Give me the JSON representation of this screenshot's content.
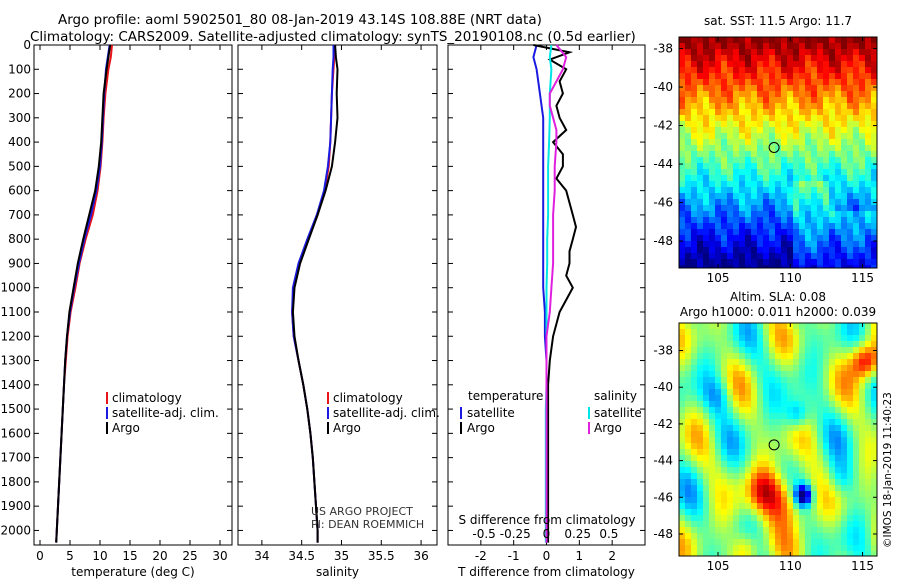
{
  "title": {
    "line1": "Argo profile: aoml 5902501_80 08-Jan-2019 43.14S 108.88E (NRT data)",
    "line2": "Climatology: CARS2009. Satellite-adjusted climatology: synTS_20190108.nc (0.5d earlier)"
  },
  "credit": "©IMOS 18-Jan-2019 11:40:23",
  "project_note": [
    "US ARGO PROJECT",
    "PI: DEAN ROEMMICH"
  ],
  "colors": {
    "climatology": "#e8141a",
    "satellite": "#1a1ae0",
    "argo": "#000000",
    "sat_salinity": "#00e5e5",
    "argo_salinity": "#e020e0"
  },
  "y_ticks": [
    0,
    100,
    200,
    300,
    400,
    500,
    600,
    700,
    800,
    900,
    1000,
    1100,
    1200,
    1300,
    1400,
    1500,
    1600,
    1700,
    1800,
    1900,
    2000
  ],
  "chart_data": [
    {
      "type": "line",
      "xlabel": "temperature (deg C)",
      "xlim": [
        -1,
        32
      ],
      "ylim": [
        2060,
        0
      ],
      "x_ticks": [
        "0",
        "5",
        "10",
        "15",
        "20",
        "25",
        "30"
      ],
      "x_tick_values": [
        0,
        5,
        10,
        15,
        20,
        25,
        30
      ],
      "legend": [
        "climatology",
        "satellite-adj. clim.",
        "Argo"
      ],
      "series": [
        {
          "name": "climatology",
          "color": "red",
          "depth": [
            0,
            50,
            100,
            200,
            300,
            400,
            500,
            600,
            700,
            800,
            900,
            1000,
            1100,
            1200,
            1300,
            1400,
            1500,
            1600,
            1700,
            1800,
            1900,
            2000,
            2050
          ],
          "values": [
            12.0,
            11.8,
            11.4,
            10.9,
            10.6,
            10.4,
            10.1,
            9.6,
            8.8,
            7.6,
            6.6,
            5.9,
            5.1,
            4.6,
            4.3,
            4.0,
            3.8,
            3.6,
            3.4,
            3.2,
            3.0,
            2.8,
            2.7
          ]
        },
        {
          "name": "satellite-adj. clim.",
          "color": "blue",
          "depth": [
            0,
            50,
            100,
            200,
            300,
            400,
            500,
            600,
            700,
            800,
            900,
            1000,
            1100,
            1200,
            1300,
            1400,
            1500,
            1600,
            1700,
            1800,
            1900,
            2000,
            2050
          ],
          "values": [
            11.6,
            11.3,
            11.0,
            10.7,
            10.5,
            10.3,
            10.0,
            9.4,
            8.5,
            7.4,
            6.5,
            5.7,
            5.0,
            4.5,
            4.2,
            4.0,
            3.8,
            3.6,
            3.4,
            3.2,
            3.0,
            2.8,
            2.7
          ]
        },
        {
          "name": "Argo",
          "color": "black",
          "depth": [
            0,
            50,
            100,
            200,
            300,
            400,
            500,
            600,
            700,
            800,
            900,
            1000,
            1100,
            1200,
            1300,
            1400,
            1500,
            1600,
            1700,
            1800,
            1900,
            2000,
            2050
          ],
          "values": [
            11.7,
            11.4,
            11.1,
            10.6,
            10.4,
            10.2,
            9.8,
            9.2,
            8.2,
            7.2,
            6.3,
            5.6,
            4.9,
            4.5,
            4.2,
            4.0,
            3.8,
            3.6,
            3.4,
            3.2,
            3.0,
            2.8,
            2.7
          ]
        }
      ]
    },
    {
      "type": "line",
      "xlabel": "salinity",
      "xlim": [
        33.7,
        36.2
      ],
      "ylim": [
        2060,
        0
      ],
      "x_ticks": [
        "34",
        "34.5",
        "35",
        "35.5",
        "36"
      ],
      "x_tick_values": [
        34,
        34.5,
        35,
        35.5,
        36
      ],
      "legend": [
        "climatology",
        "satellite-adj. clim.",
        "Argo"
      ],
      "series": [
        {
          "name": "climatology",
          "color": "red",
          "depth": [
            0,
            50,
            100,
            200,
            300,
            400,
            500,
            600,
            700,
            800,
            900,
            1000,
            1100,
            1200,
            1300,
            1400,
            1500,
            1600,
            1700,
            1800,
            1900,
            2000,
            2050
          ],
          "values": [
            34.92,
            34.91,
            34.9,
            34.88,
            34.87,
            34.86,
            34.84,
            34.79,
            34.7,
            34.58,
            34.47,
            34.4,
            34.38,
            34.4,
            34.46,
            34.52,
            34.57,
            34.61,
            34.64,
            34.66,
            34.68,
            34.7,
            34.7
          ]
        },
        {
          "name": "satellite-adj. clim.",
          "color": "blue",
          "depth": [
            0,
            50,
            100,
            200,
            300,
            400,
            500,
            600,
            700,
            800,
            900,
            1000,
            1100,
            1200,
            1300,
            1400,
            1500,
            1600,
            1700,
            1800,
            1900,
            2000,
            2050
          ],
          "values": [
            34.9,
            34.9,
            34.89,
            34.88,
            34.87,
            34.86,
            34.83,
            34.78,
            34.69,
            34.57,
            34.46,
            34.39,
            34.38,
            34.4,
            34.46,
            34.52,
            34.57,
            34.61,
            34.64,
            34.66,
            34.68,
            34.7,
            34.7
          ]
        },
        {
          "name": "Argo",
          "color": "black",
          "depth": [
            0,
            50,
            100,
            200,
            300,
            400,
            500,
            600,
            700,
            800,
            900,
            1000,
            1100,
            1200,
            1300,
            1400,
            1500,
            1600,
            1700,
            1800,
            1900,
            2000,
            2050
          ],
          "values": [
            34.92,
            34.93,
            34.95,
            34.94,
            34.95,
            34.92,
            34.88,
            34.8,
            34.7,
            34.59,
            34.48,
            34.41,
            34.39,
            34.41,
            34.46,
            34.52,
            34.57,
            34.61,
            34.64,
            34.66,
            34.68,
            34.7,
            34.7
          ]
        }
      ]
    },
    {
      "type": "line",
      "xlabel": "T difference from climatology",
      "top_label": "S difference from climatology",
      "xlim": [
        -3,
        3
      ],
      "ylim": [
        2060,
        0
      ],
      "x_ticks": [
        "-2",
        "-1",
        "0",
        "1",
        "2"
      ],
      "x_tick_values": [
        -2,
        -1,
        0,
        1,
        2
      ],
      "top_ticks": [
        "-0.5",
        "-0.25",
        "0",
        "0.25",
        "0.5"
      ],
      "top_tick_values": [
        -1.9,
        -0.95,
        0,
        0.95,
        1.9
      ],
      "legend_left_title": "temperature",
      "legend_left": [
        "satellite",
        "Argo"
      ],
      "legend_right_title": "salinity",
      "legend_right": [
        "satellite",
        "Argo"
      ],
      "series": [
        {
          "name": "satellite",
          "color": "blue",
          "depth": [
            0,
            50,
            100,
            200,
            300,
            400,
            500,
            600,
            700,
            800,
            900,
            1000,
            1100,
            1200,
            1300,
            1400,
            1500,
            1600,
            1700,
            1800,
            1900,
            2000,
            2050
          ],
          "values": [
            -0.3,
            -0.4,
            -0.3,
            -0.2,
            -0.1,
            -0.1,
            -0.1,
            -0.1,
            -0.1,
            -0.1,
            -0.1,
            -0.1,
            -0.05,
            -0.05,
            0,
            0,
            0,
            0,
            0,
            0,
            0,
            0,
            0
          ]
        },
        {
          "name": "Argo",
          "color": "black",
          "depth": [
            0,
            30,
            60,
            100,
            150,
            200,
            250,
            300,
            350,
            400,
            450,
            500,
            550,
            600,
            650,
            700,
            750,
            800,
            850,
            900,
            950,
            1000,
            1050,
            1100,
            1200,
            1300,
            1400,
            1500,
            1600,
            1700,
            1800,
            1900,
            2000,
            2050
          ],
          "values": [
            -0.4,
            0.7,
            0.1,
            0.6,
            0.4,
            0.5,
            0.3,
            0.4,
            0.6,
            0.2,
            0.5,
            0.5,
            0.3,
            0.6,
            0.7,
            0.8,
            0.9,
            0.8,
            0.7,
            0.7,
            0.6,
            0.8,
            0.6,
            0.4,
            0.2,
            0.1,
            0.05,
            0.05,
            0.05,
            0.05,
            0.05,
            0.05,
            0.05,
            0.05
          ]
        },
        {
          "name": "satellite (salinity)",
          "color": "cyan",
          "depth": [
            0,
            50,
            100,
            200,
            300,
            400,
            500,
            600,
            700,
            800,
            900,
            1000,
            1100,
            1200,
            1300,
            1400,
            1500,
            1600,
            1700,
            1800,
            1900,
            2000,
            2050
          ],
          "values": [
            0.15,
            0.1,
            0.15,
            0.1,
            0.1,
            0.08,
            0.05,
            0.05,
            0.05,
            0.02,
            0.02,
            0.0,
            0.0,
            0.0,
            0.0,
            0.0,
            -0.02,
            -0.02,
            -0.02,
            -0.02,
            -0.02,
            -0.02,
            -0.02
          ]
        },
        {
          "name": "Argo (salinity)",
          "color": "magenta",
          "depth": [
            0,
            50,
            100,
            150,
            200,
            250,
            300,
            350,
            400,
            500,
            600,
            700,
            800,
            900,
            1000,
            1100,
            1200,
            1300,
            1400,
            1500,
            1600,
            1700,
            1800,
            1900,
            2000,
            2050
          ],
          "values": [
            0.3,
            0.6,
            0.5,
            0.3,
            0.1,
            0.1,
            0.2,
            0.3,
            0.3,
            0.25,
            0.25,
            0.2,
            0.2,
            0.2,
            0.15,
            0.1,
            0.0,
            0.0,
            0.0,
            0.0,
            0.0,
            0.0,
            0.0,
            0.0,
            0.0,
            0.0
          ]
        }
      ]
    },
    {
      "type": "heatmap",
      "title": "sat. SST: 11.5 Argo: 11.7",
      "x_ticks": [
        "105",
        "110",
        "115"
      ],
      "x_tick_values": [
        105,
        110,
        115
      ],
      "y_ticks": [
        "-38",
        "-40",
        "-42",
        "-44",
        "-46",
        "-48"
      ],
      "y_tick_values": [
        -38,
        -40,
        -42,
        -44,
        -46,
        -48
      ],
      "xlim": [
        102.3,
        116.0
      ],
      "ylim": [
        -49.4,
        -37.4
      ],
      "marker": {
        "lon": 108.88,
        "lat": -43.14
      }
    },
    {
      "type": "heatmap",
      "title_line1": "Altim. SLA: 0.08",
      "title_line2": "Argo h1000: 0.011 h2000: 0.039",
      "x_ticks": [
        "105",
        "110",
        "115"
      ],
      "x_tick_values": [
        105,
        110,
        115
      ],
      "y_ticks": [
        "-38",
        "-40",
        "-42",
        "-44",
        "-46",
        "-48"
      ],
      "y_tick_values": [
        -38,
        -40,
        -42,
        -44,
        -46,
        -48
      ],
      "xlim": [
        102.3,
        116.0
      ],
      "ylim": [
        -49.2,
        -36.5
      ],
      "marker": {
        "lon": 108.88,
        "lat": -43.14
      }
    }
  ]
}
